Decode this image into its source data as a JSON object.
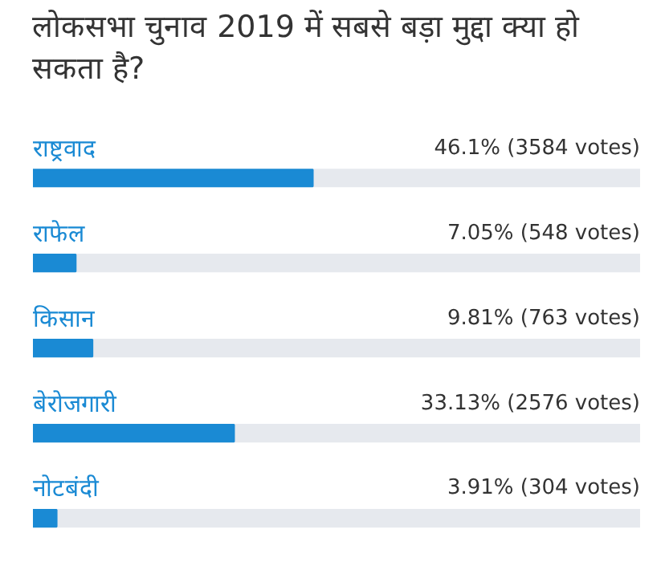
{
  "chart_data": {
    "type": "bar",
    "orientation": "horizontal",
    "title": "लोकसभा चुनाव 2019 में सबसे बड़ा मुद्दा क्या हो सकता है?",
    "categories": [
      "राष्ट्रवाद",
      "राफेल",
      "किसान",
      "बेरोजगारी",
      "नोटबंदी"
    ],
    "values": [
      46.1,
      7.05,
      9.81,
      33.13,
      3.91
    ],
    "value_labels": [
      "46.1% (3584 votes)",
      "7.05% (548 votes)",
      "9.81% (763 votes)",
      "33.13% (2576 votes)",
      "3.91% (304 votes)"
    ],
    "color": "#1a8ad4",
    "xlim": [
      0,
      100
    ],
    "grid": false
  }
}
